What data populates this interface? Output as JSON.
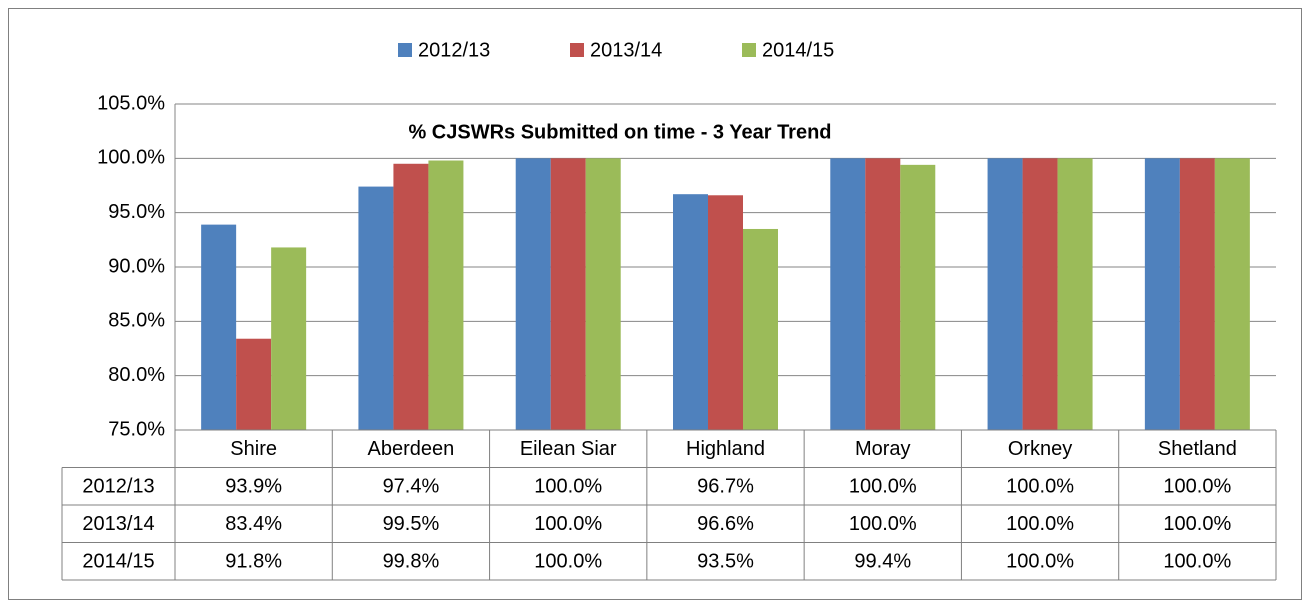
{
  "chart_data": {
    "type": "bar",
    "title": "% CJSWRs Submitted on time - 3 Year Trend",
    "categories": [
      "Shire",
      "Aberdeen",
      "Eilean Siar",
      "Highland",
      "Moray",
      "Orkney",
      "Shetland"
    ],
    "series": [
      {
        "name": "2012/13",
        "color": "#4f81bd",
        "values": [
          93.9,
          97.4,
          100,
          96.7,
          100,
          100,
          100
        ],
        "value_labels": [
          "93.9%",
          "97.4%",
          "100.0%",
          "96.7%",
          "100.0%",
          "100.0%",
          "100.0%"
        ]
      },
      {
        "name": "2013/14",
        "color": "#c0504d",
        "values": [
          83.4,
          99.5,
          100,
          96.6,
          100,
          100,
          100
        ],
        "value_labels": [
          "83.4%",
          "99.5%",
          "100.0%",
          "96.6%",
          "100.0%",
          "100.0%",
          "100.0%"
        ]
      },
      {
        "name": "2014/15",
        "color": "#9bbb59",
        "values": [
          91.8,
          99.8,
          100,
          93.5,
          99.4,
          100,
          100
        ],
        "value_labels": [
          "91.8%",
          "99.8%",
          "100.0%",
          "93.5%",
          "99.4%",
          "100.0%",
          "100.0%"
        ]
      }
    ],
    "ylim": [
      75,
      105
    ],
    "yticks": [
      {
        "value": 75,
        "label": "75.0%"
      },
      {
        "value": 80,
        "label": "80.0%"
      },
      {
        "value": 85,
        "label": "85.0%"
      },
      {
        "value": 90,
        "label": "90.0%"
      },
      {
        "value": 95,
        "label": "95.0%"
      },
      {
        "value": 100,
        "label": "100.0%"
      },
      {
        "value": 105,
        "label": "105.0%"
      }
    ],
    "grid": true,
    "legend": "top"
  }
}
